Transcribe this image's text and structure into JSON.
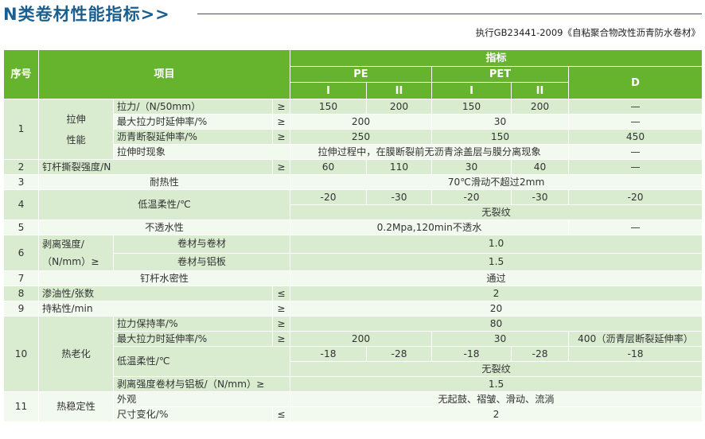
{
  "title": "N类卷材性能指标>>",
  "subtitle": "执行GB23441-2009《自粘聚合物改性沥青防水卷材》",
  "header": {
    "seq": "序号",
    "item": "项目",
    "spec": "指标",
    "pe": "PE",
    "pet": "PET",
    "d": "D",
    "i": "I",
    "ii": "II"
  },
  "rows": {
    "r1_no": "1",
    "r1_g1": "拉伸",
    "r1_g2": "性能",
    "r1a_name": "拉力/（N/50mm）",
    "r1a_sym": "≥",
    "r1a_v": [
      "150",
      "200",
      "150",
      "200",
      "—"
    ],
    "r1b_name": "最大拉力时延伸率/%",
    "r1b_sym": "≥",
    "r1b_pe": "200",
    "r1b_pet": "30",
    "r1b_d": "—",
    "r1c_name": "沥青断裂延伸率/%",
    "r1c_sym": "≥",
    "r1c_pe": "250",
    "r1c_pet": "150",
    "r1c_d": "450",
    "r1d_name": "拉伸时现象",
    "r1d_v": "拉伸过程中，在膜断裂前无沥青涂盖层与膜分离现象",
    "r1d_d": "—",
    "r2_no": "2",
    "r2_name": "钉杆撕裂强度/N",
    "r2_sym": "≥",
    "r2_v": [
      "60",
      "110",
      "30",
      "40",
      "—"
    ],
    "r3_no": "3",
    "r3_name": "耐热性",
    "r3_v": "70℃滑动不超过2mm",
    "r4_no": "4",
    "r4_name": "低温柔性/℃",
    "r4_v": [
      "-20",
      "-30",
      "-20",
      "-30",
      "-20"
    ],
    "r4_v2": "无裂纹",
    "r5_no": "5",
    "r5_name": "不透水性",
    "r5_v": "0.2Mpa,120min不透水",
    "r5_d": "—",
    "r6_no": "6",
    "r6_g1": "剥离强度/",
    "r6_g2": "（N/mm）≥",
    "r6a_name": "卷材与卷材",
    "r6a_v": "1.0",
    "r6b_name": "卷材与铝板",
    "r6b_v": "1.5",
    "r7_no": "7",
    "r7_name": "钉杆水密性",
    "r7_v": "通过",
    "r8_no": "8",
    "r8_name": "渗油性/张数",
    "r8_sym": "≤",
    "r8_v": "2",
    "r9_no": "9",
    "r9_name": "持粘性/min",
    "r9_sym": "≥",
    "r9_v": "20",
    "r10_no": "10",
    "r10_g": "热老化",
    "r10a_name": "拉力保持率/%",
    "r10a_sym": "≥",
    "r10a_v": "80",
    "r10b_name": "最大拉力时延伸率/%",
    "r10b_sym": "≥",
    "r10b_pe": "200",
    "r10b_pet": "30",
    "r10b_d": "400（沥青层断裂延伸率）",
    "r10c_name": "低温柔性/℃",
    "r10c_v": [
      "-18",
      "-28",
      "-18",
      "-28",
      "-18"
    ],
    "r10c_v2": "无裂纹",
    "r10d_name": "剥离强度卷材与铝板/（N/mm）≥",
    "r10d_v": "1.5",
    "r11_no": "11",
    "r11_g": "热稳定性",
    "r11a_name": "外观",
    "r11a_v": "无起鼓、褶皱、滑动、流淌",
    "r11b_name": "尺寸变化/%",
    "r11b_sym": "≤",
    "r11b_v": "2"
  }
}
